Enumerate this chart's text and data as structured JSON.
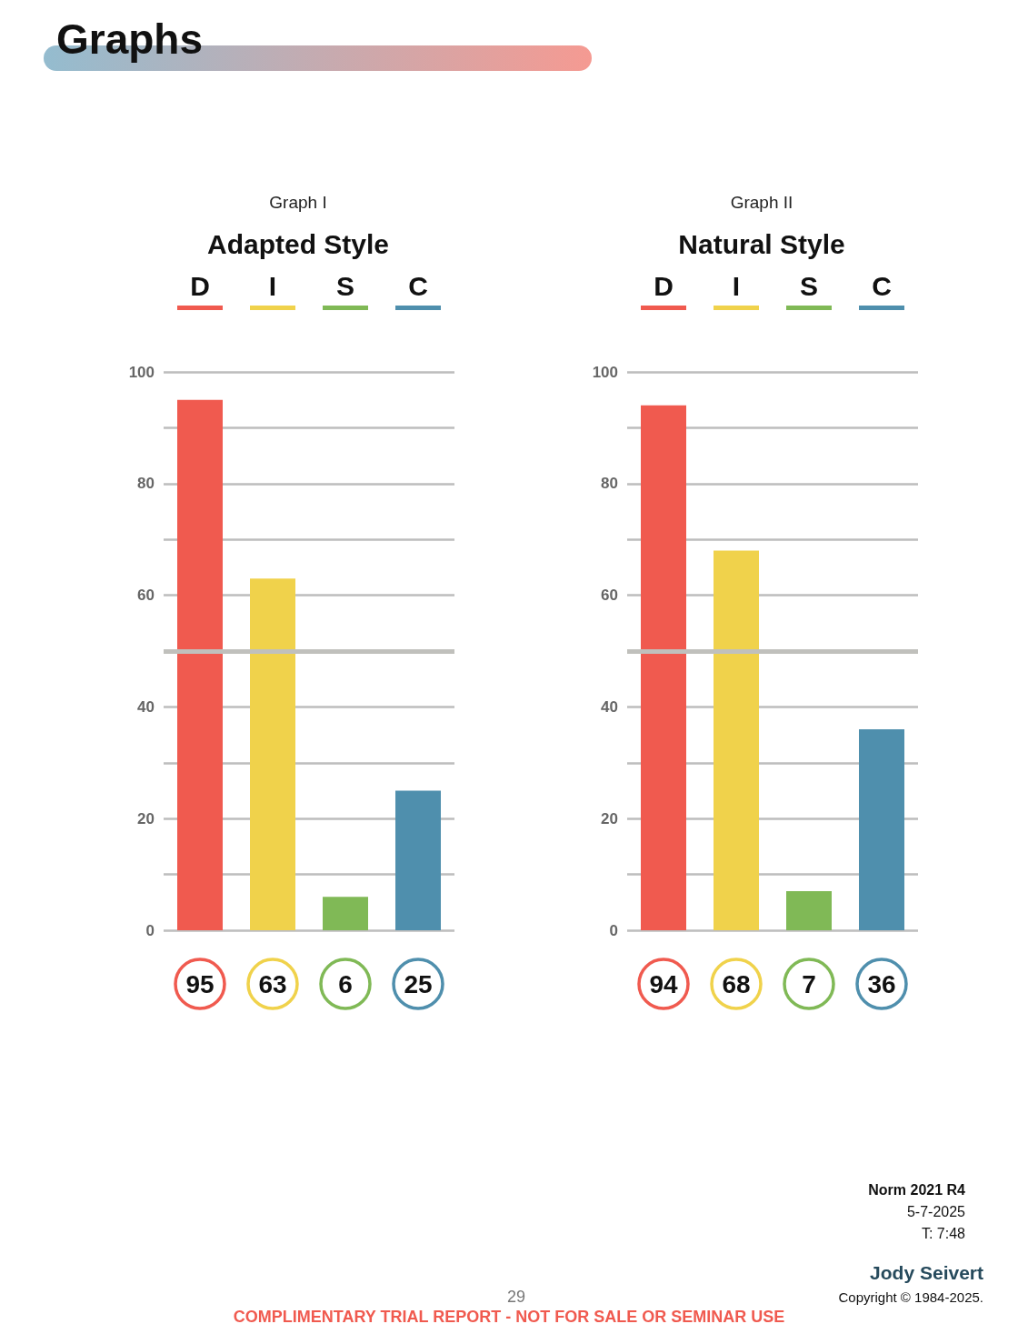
{
  "chart_data": [
    {
      "type": "bar",
      "subtitle": "Graph I",
      "title": "Adapted Style",
      "categories": [
        "D",
        "I",
        "S",
        "C"
      ],
      "values": [
        95,
        63,
        6,
        25
      ],
      "colors": [
        "#f05a4f",
        "#f0d24b",
        "#80b956",
        "#4f8fad"
      ],
      "ylim": [
        0,
        100
      ],
      "yticks": [
        0,
        {
          "value": 10,
          "label": null
        },
        20,
        {
          "value": 30,
          "label": null
        },
        40,
        {
          "value": 50,
          "label": null
        },
        60,
        {
          "value": 70,
          "label": null
        },
        80,
        {
          "value": 90,
          "label": null
        },
        100
      ],
      "grid": "y",
      "data_labels": true,
      "ref_lines": [
        {
          "axis": "y",
          "value": 50,
          "color": "#c0c0bc"
        }
      ],
      "annotations": [
        "Graphs"
      ]
    },
    {
      "type": "bar",
      "subtitle": "Graph II",
      "title": "Natural Style",
      "categories": [
        "D",
        "I",
        "S",
        "C"
      ],
      "values": [
        94,
        68,
        7,
        36
      ],
      "colors": [
        "#f05a4f",
        "#f0d24b",
        "#80b956",
        "#4f8fad"
      ],
      "ylim": [
        0,
        100
      ],
      "yticks": [
        0,
        {
          "value": 10,
          "label": null
        },
        20,
        {
          "value": 30,
          "label": null
        },
        40,
        {
          "value": 50,
          "label": null
        },
        60,
        {
          "value": 70,
          "label": null
        },
        80,
        {
          "value": 90,
          "label": null
        },
        100
      ],
      "grid": "y",
      "data_labels": true,
      "ref_lines": [
        {
          "axis": "y",
          "value": 50,
          "color": "#c0c0bc"
        }
      ],
      "annotations": [
        "Norm 2021 R4",
        "5-7-2025",
        "T: 7:48",
        "Jody Seivert",
        "29",
        "Copyright © 1984-2025.",
        "COMPLIMENTARY TRIAL REPORT - NOT FOR SALE OR SEMINAR USE"
      ]
    }
  ]
}
